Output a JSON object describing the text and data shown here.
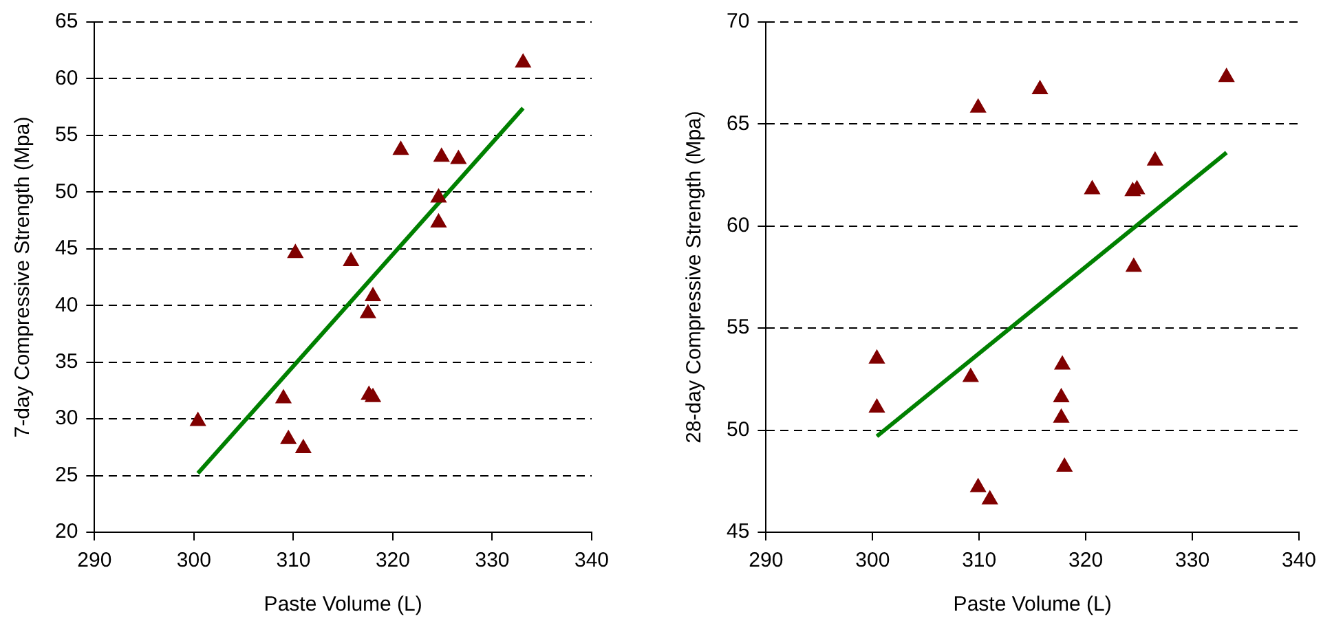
{
  "chart_data": [
    {
      "type": "scatter",
      "xlabel": "Paste Volume (L)",
      "ylabel": "7-day Compressive Strength (Mpa)",
      "xlim": [
        290,
        340
      ],
      "xticks": [
        290,
        300,
        310,
        320,
        330,
        340
      ],
      "ylim": [
        20,
        65
      ],
      "yticks": [
        20,
        25,
        30,
        35,
        40,
        45,
        50,
        55,
        60,
        65
      ],
      "grid": "y",
      "legend": false,
      "series": [
        {
          "type": "scatter",
          "marker": "triangle",
          "color": "#800000",
          "x": [
            300.4,
            309,
            309.5,
            310.2,
            311,
            315.8,
            317.5,
            317.6,
            318,
            318,
            320.8,
            324.6,
            324.6,
            324.9,
            326.6,
            333.1
          ],
          "values": [
            29.8,
            31.8,
            28.2,
            44.6,
            27.4,
            43.9,
            39.3,
            32.1,
            40.8,
            31.9,
            53.7,
            49.5,
            47.3,
            53.1,
            52.9,
            61.4
          ]
        },
        {
          "type": "line",
          "marker": "none",
          "color": "#008000",
          "x": [
            300.4,
            333.1
          ],
          "values": [
            25.2,
            57.4
          ]
        }
      ]
    },
    {
      "type": "scatter",
      "xlabel": "Paste Volume (L)",
      "ylabel": "28-day Compressive Strength (Mpa)",
      "xlim": [
        290,
        340
      ],
      "xticks": [
        290,
        300,
        310,
        320,
        330,
        340
      ],
      "ylim": [
        45,
        70
      ],
      "yticks": [
        45,
        50,
        55,
        60,
        65,
        70
      ],
      "grid": "y",
      "legend": false,
      "series": [
        {
          "type": "scatter",
          "marker": "triangle",
          "color": "#800000",
          "x": [
            300.4,
            300.4,
            309.2,
            309.9,
            311,
            309.9,
            315.7,
            317.8,
            317.7,
            317.7,
            318,
            320.6,
            324.5,
            324.4,
            324.8,
            326.5,
            333.2
          ],
          "values": [
            53.5,
            51.1,
            52.6,
            47.2,
            46.6,
            65.8,
            66.7,
            53.2,
            51.6,
            50.6,
            48.2,
            61.8,
            58,
            61.7,
            61.8,
            63.2,
            67.3
          ]
        },
        {
          "type": "line",
          "marker": "none",
          "color": "#008000",
          "x": [
            300.4,
            333.2
          ],
          "values": [
            49.7,
            63.6
          ]
        }
      ]
    }
  ]
}
